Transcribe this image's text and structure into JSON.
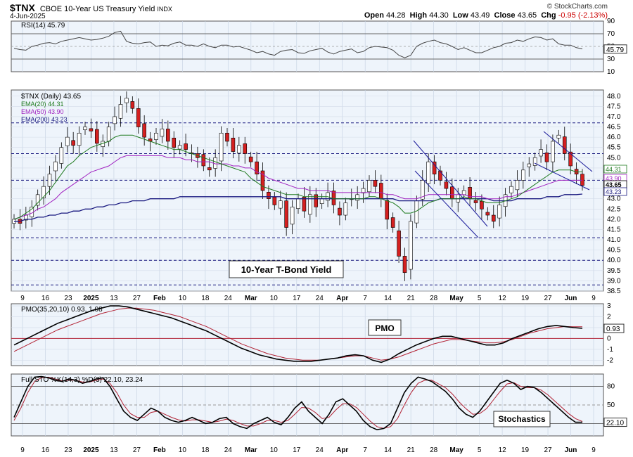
{
  "header": {
    "ticker": "$TNX",
    "name": "CBOE 10-Year US Treasury Yield",
    "exchange": "INDX",
    "date": "4-Jun-2025",
    "credit": "© StockCharts.com",
    "open_label": "Open",
    "open": "44.28",
    "high_label": "High",
    "high": "44.30",
    "low_label": "Low",
    "low": "43.49",
    "close_label": "Close",
    "close": "43.65",
    "chg_label": "Chg",
    "chg": "-0.95 (-2.13%)"
  },
  "chart_data": {
    "type": "candlestick",
    "x_ticks": [
      "9",
      "16",
      "23",
      "2025",
      "13",
      "27",
      "Feb",
      "10",
      "18",
      "24",
      "Mar",
      "10",
      "17",
      "24",
      "Apr",
      "7",
      "14",
      "21",
      "28",
      "May",
      "5",
      "12",
      "19",
      "27",
      "Jun",
      "9"
    ],
    "rsi": {
      "legend": "RSI(14) 45.79",
      "value": "45.79",
      "y_ticks": [
        "90",
        "70",
        "50",
        "30",
        "10"
      ],
      "ylim": [
        10,
        90
      ],
      "overbought": 70,
      "oversold": 30,
      "values": [
        47,
        45,
        44,
        50,
        52,
        55,
        56,
        54,
        58,
        60,
        62,
        64,
        62,
        60,
        61,
        63,
        66,
        72,
        74,
        58,
        55,
        54,
        56,
        57,
        50,
        52,
        51,
        55,
        57,
        52,
        52,
        50,
        54,
        50,
        48,
        52,
        52,
        49,
        50,
        47,
        44,
        40,
        42,
        38,
        36,
        42,
        44,
        45,
        40,
        39,
        43,
        45,
        47,
        41,
        38,
        42,
        44,
        46,
        40,
        42,
        48,
        50,
        49,
        48,
        44,
        36,
        32,
        36,
        50,
        55,
        58,
        60,
        56,
        54,
        50,
        45,
        48,
        44,
        40,
        40,
        44,
        48,
        50,
        55,
        56,
        60,
        58,
        62,
        65,
        64,
        60,
        62,
        54,
        52,
        52,
        48,
        46
      ],
      "label_color": "#ffffff"
    },
    "price": {
      "legend_title": "$TNX (Daily) 43.65",
      "ema20_label": "EMA(20) 44.31",
      "ema20_color": "#1f7a1f",
      "ema50_label": "EMA(50) 43.90",
      "ema50_color": "#a020c0",
      "ema200_label": "EMA(200) 43.23",
      "ema200_color": "#1a1a80",
      "y_ticks": [
        "48.0",
        "47.5",
        "47.0",
        "46.5",
        "46.0",
        "45.5",
        "45.0",
        "44.5",
        "44.0",
        "43.5",
        "43.0",
        "42.5",
        "42.0",
        "41.5",
        "41.0",
        "40.5",
        "40.0",
        "39.5",
        "39.0",
        "38.5"
      ],
      "ylim": [
        38.5,
        48.3
      ],
      "dashed_levels": [
        46.7,
        45.2,
        43.9,
        41.1,
        40.0,
        38.8
      ],
      "right_labels": [
        "44.31",
        "43.90",
        "43.65",
        "43.23"
      ],
      "closes": [
        42.0,
        41.8,
        42.2,
        42.6,
        43.2,
        43.6,
        44.2,
        44.8,
        45.5,
        46.0,
        45.6,
        46.2,
        46.5,
        46.3,
        45.7,
        45.8,
        46.5,
        47.0,
        47.6,
        47.9,
        47.4,
        46.5,
        46.0,
        45.8,
        46.2,
        46.4,
        45.8,
        45.5,
        45.6,
        45.4,
        45.2,
        45.0,
        44.6,
        44.4,
        45.0,
        46.2,
        45.8,
        45.3,
        45.6,
        45.2,
        44.8,
        44.2,
        43.4,
        43.0,
        42.7,
        42.9,
        41.6,
        42.6,
        43.0,
        42.4,
        43.2,
        42.6,
        43.0,
        43.3,
        42.7,
        42.2,
        42.8,
        43.0,
        43.2,
        43.5,
        43.9,
        43.6,
        43.0,
        42.0,
        41.6,
        40.2,
        39.4,
        41.9,
        42.9,
        43.9,
        44.8,
        44.2,
        43.9,
        43.5,
        43.0,
        43.2,
        43.4,
        43.0,
        42.8,
        42.5,
        42.2,
        41.9,
        42.7,
        43.2,
        43.6,
        43.9,
        44.4,
        44.7,
        45.0,
        45.4,
        44.8,
        45.8,
        46.1,
        45.2,
        44.6,
        44.2,
        43.65
      ],
      "ema20": [
        42.0,
        42.1,
        42.3,
        42.5,
        42.8,
        43.1,
        43.4,
        43.8,
        44.2,
        44.6,
        44.8,
        45.1,
        45.3,
        45.5,
        45.6,
        45.7,
        45.8,
        46.0,
        46.1,
        46.1,
        46.1,
        46.0,
        45.9,
        45.8,
        45.7,
        45.6,
        45.5,
        45.4,
        45.4,
        45.3,
        45.2,
        45.1,
        45.0,
        44.9,
        44.8,
        44.7,
        44.6,
        44.5,
        44.4,
        44.3,
        44.0,
        43.8,
        43.6,
        43.5,
        43.4,
        43.3,
        43.2,
        43.2,
        43.2,
        43.1,
        43.1,
        43.1,
        43.1,
        43.1,
        43.0,
        43.0,
        43.0,
        43.0,
        43.0,
        43.0,
        43.1,
        43.1,
        43.0,
        42.9,
        42.8,
        42.6,
        42.3,
        42.3,
        42.4,
        42.6,
        42.8,
        42.9,
        43.0,
        43.0,
        43.0,
        43.0,
        43.1,
        43.0,
        43.0,
        42.9,
        42.8,
        42.8,
        42.8,
        42.9,
        43.0,
        43.1,
        43.3,
        43.5,
        43.7,
        43.9,
        44.1,
        44.3,
        44.4,
        44.4,
        44.4,
        44.3,
        44.31
      ],
      "ema50": [
        42.0,
        42.1,
        42.2,
        42.3,
        42.5,
        42.6,
        42.8,
        43.0,
        43.3,
        43.5,
        43.7,
        43.9,
        44.1,
        44.3,
        44.4,
        44.5,
        44.6,
        44.8,
        45.0,
        45.1,
        45.1,
        45.1,
        45.1,
        45.1,
        45.1,
        45.1,
        45.0,
        45.0,
        45.0,
        44.9,
        44.9,
        44.8,
        44.8,
        44.8,
        44.7,
        44.7,
        44.7,
        44.6,
        44.6,
        44.5,
        44.5,
        44.3,
        44.2,
        44.0,
        43.9,
        43.8,
        43.7,
        43.6,
        43.5,
        43.5,
        43.4,
        43.4,
        43.4,
        43.4,
        43.3,
        43.3,
        43.3,
        43.3,
        43.3,
        43.3,
        43.3,
        43.3,
        43.3,
        43.2,
        43.2,
        43.1,
        43.0,
        43.0,
        43.0,
        43.1,
        43.2,
        43.2,
        43.2,
        43.2,
        43.2,
        43.2,
        43.2,
        43.1,
        43.1,
        43.1,
        43.0,
        43.0,
        43.0,
        43.1,
        43.1,
        43.2,
        43.3,
        43.4,
        43.5,
        43.6,
        43.7,
        43.8,
        43.9,
        43.9,
        43.9,
        43.9,
        43.9
      ],
      "ema200": [
        41.9,
        41.9,
        42.0,
        42.0,
        42.1,
        42.1,
        42.2,
        42.2,
        42.3,
        42.3,
        42.4,
        42.4,
        42.5,
        42.5,
        42.6,
        42.6,
        42.7,
        42.7,
        42.8,
        42.8,
        42.9,
        42.9,
        42.9,
        43.0,
        43.0,
        43.0,
        43.0,
        43.0,
        43.1,
        43.1,
        43.1,
        43.1,
        43.1,
        43.1,
        43.1,
        43.1,
        43.1,
        43.1,
        43.1,
        43.1,
        43.1,
        43.1,
        43.1,
        43.1,
        43.1,
        43.1,
        43.0,
        43.0,
        43.0,
        43.0,
        43.0,
        43.0,
        43.0,
        43.0,
        43.0,
        43.0,
        43.0,
        43.0,
        43.0,
        43.0,
        43.0,
        43.0,
        43.0,
        43.0,
        43.0,
        42.9,
        42.9,
        42.9,
        42.9,
        42.9,
        42.9,
        42.9,
        43.0,
        43.0,
        43.0,
        43.0,
        43.0,
        43.0,
        43.0,
        43.0,
        43.0,
        42.9,
        42.9,
        42.9,
        42.9,
        43.0,
        43.0,
        43.0,
        43.0,
        43.0,
        43.1,
        43.1,
        43.1,
        43.2,
        43.2,
        43.2,
        43.23
      ],
      "annotation": "10-Year T-Bond Yield"
    },
    "pmo": {
      "legend": "PMO(35,20,10) 0.93, 1.08",
      "value": "0.93",
      "y_ticks": [
        "3",
        "2",
        "1",
        "0",
        "-1",
        "-2"
      ],
      "ylim": [
        -2.5,
        3.2
      ],
      "annotation": "PMO",
      "pmo": [
        -0.6,
        -0.2,
        0.2,
        0.6,
        1.0,
        1.4,
        1.7,
        2.0,
        2.3,
        2.6,
        2.8,
        3.0,
        3.0,
        2.9,
        2.7,
        2.5,
        2.3,
        2.1,
        1.9,
        1.6,
        1.3,
        1.0,
        0.7,
        0.3,
        -0.1,
        -0.5,
        -0.9,
        -1.2,
        -1.5,
        -1.7,
        -1.9,
        -2.0,
        -2.1,
        -2.1,
        -2.1,
        -2.0,
        -1.9,
        -1.8,
        -1.6,
        -1.5,
        -1.6,
        -2.0,
        -2.2,
        -1.9,
        -1.4,
        -1.0,
        -0.6,
        -0.3,
        0.0,
        0.2,
        0.2,
        0.0,
        -0.2,
        -0.4,
        -0.6,
        -0.6,
        -0.4,
        0.0,
        0.3,
        0.6,
        0.9,
        1.1,
        1.2,
        1.1,
        1.0,
        0.93
      ],
      "signal": [
        -1.2,
        -0.8,
        -0.4,
        0.0,
        0.4,
        0.8,
        1.1,
        1.4,
        1.7,
        2.0,
        2.3,
        2.5,
        2.7,
        2.8,
        2.8,
        2.7,
        2.6,
        2.4,
        2.2,
        2.0,
        1.7,
        1.4,
        1.1,
        0.7,
        0.3,
        -0.1,
        -0.5,
        -0.8,
        -1.1,
        -1.4,
        -1.6,
        -1.8,
        -1.9,
        -2.0,
        -2.0,
        -2.0,
        -1.9,
        -1.8,
        -1.7,
        -1.6,
        -1.6,
        -1.8,
        -2.0,
        -1.9,
        -1.7,
        -1.4,
        -1.1,
        -0.8,
        -0.5,
        -0.3,
        -0.1,
        -0.1,
        -0.2,
        -0.3,
        -0.4,
        -0.4,
        -0.3,
        -0.1,
        0.2,
        0.5,
        0.7,
        0.9,
        1.0,
        1.1,
        1.08,
        1.08
      ],
      "pmo_color": "#000000",
      "signal_color": "#b22234"
    },
    "stochastics": {
      "legend": "Full STO %K(14,3) %D(3) 22.10, 23.24",
      "value": "22.10",
      "y_ticks": [
        "80",
        "50",
        "20"
      ],
      "ylim": [
        0,
        100
      ],
      "annotation": "Stochastics",
      "k": [
        30,
        55,
        80,
        95,
        96,
        94,
        90,
        88,
        92,
        90,
        85,
        88,
        92,
        94,
        80,
        60,
        40,
        30,
        25,
        35,
        45,
        40,
        30,
        25,
        22,
        25,
        30,
        25,
        20,
        22,
        28,
        30,
        20,
        15,
        12,
        20,
        25,
        30,
        22,
        18,
        30,
        45,
        55,
        40,
        30,
        20,
        35,
        55,
        60,
        50,
        40,
        25,
        15,
        10,
        12,
        20,
        45,
        70,
        85,
        95,
        92,
        88,
        80,
        72,
        60,
        45,
        35,
        30,
        40,
        55,
        70,
        85,
        90,
        85,
        75,
        80,
        78,
        70,
        60,
        50,
        40,
        30,
        22,
        22.1
      ],
      "d": [
        25,
        45,
        70,
        88,
        94,
        95,
        92,
        89,
        90,
        90,
        87,
        87,
        90,
        92,
        85,
        70,
        50,
        36,
        30,
        30,
        38,
        40,
        35,
        30,
        26,
        24,
        26,
        26,
        24,
        22,
        24,
        27,
        25,
        20,
        16,
        16,
        20,
        25,
        25,
        22,
        25,
        35,
        46,
        45,
        38,
        28,
        30,
        42,
        52,
        52,
        46,
        35,
        24,
        15,
        12,
        15,
        28,
        50,
        70,
        85,
        90,
        90,
        84,
        78,
        68,
        55,
        44,
        35,
        36,
        44,
        58,
        72,
        84,
        86,
        80,
        78,
        78,
        74,
        66,
        56,
        46,
        36,
        28,
        23.24
      ],
      "k_color": "#000000",
      "d_color": "#b22234"
    }
  }
}
